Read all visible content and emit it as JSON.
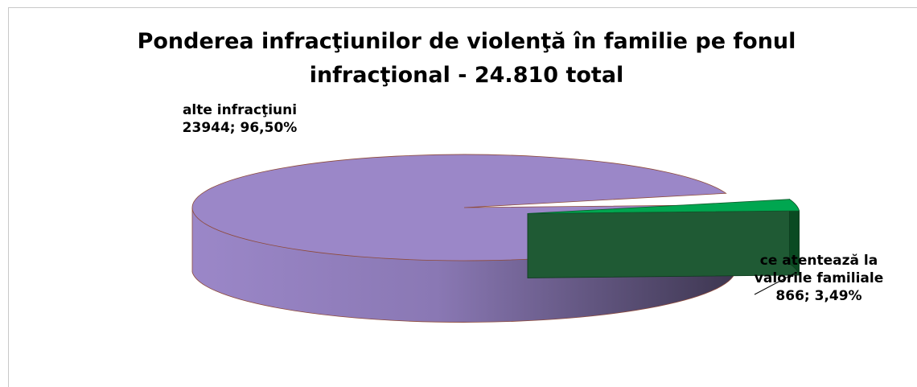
{
  "chart_data": {
    "type": "pie",
    "title_lines": [
      "Ponderea infracţiunilor de violenţă în familie pe fonul",
      "infracţional  - 24.810 total"
    ],
    "total": 24810,
    "slices": [
      {
        "label_lines": [
          "alte infracţiuni",
          "23944; 96,50%"
        ],
        "value": 23944,
        "percent": 96.5,
        "color": "#9b87c8",
        "side_color": "#6a5a8e",
        "exploded": false
      },
      {
        "label_lines": [
          "ce atentează la",
          "valorile familiale",
          "866; 3,49%"
        ],
        "value": 866,
        "percent": 3.49,
        "color": "#00a650",
        "side_color": "#0a4a22",
        "exploded": true
      }
    ],
    "style": "3d-exploded-pie",
    "legend": "none"
  }
}
